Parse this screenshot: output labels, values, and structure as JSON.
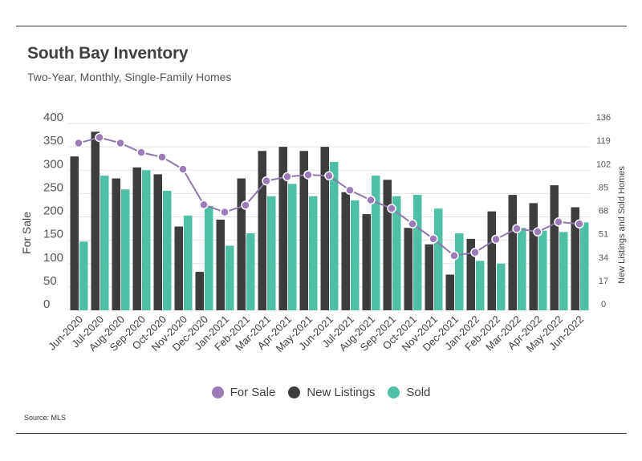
{
  "header": {
    "title": "South Bay Inventory",
    "subtitle": "Two-Year, Monthly, Single-Family Homes"
  },
  "footer": {
    "source": "Source:  MLS"
  },
  "colors": {
    "for_sale": "#9b7cb8",
    "new_listings": "#3d3d3d",
    "sold": "#4fbfa5",
    "line": "#8f78ac"
  },
  "chart_data": {
    "type": "bar",
    "categories": [
      "Jun-2020",
      "Jul-2020",
      "Aug-2020",
      "Sep-2020",
      "Oct-2020",
      "Nov-2020",
      "Dec-2020",
      "Jan-2021",
      "Feb-2021",
      "Mar-2021",
      "Apr-2021",
      "May-2021",
      "Jun-2021",
      "Jul-2021",
      "Aug-2021",
      "Sep-2021",
      "Oct-2021",
      "Nov-2021",
      "Dec-2021",
      "Jan-2022",
      "Feb-2022",
      "Mar-2022",
      "Apr-2022",
      "May-2022",
      "Jun-2022"
    ],
    "series": [
      {
        "name": "For Sale",
        "type": "line",
        "axis": "left",
        "values": [
          358,
          370,
          358,
          338,
          328,
          302,
          226,
          210,
          225,
          277,
          286,
          290,
          288,
          257,
          236,
          218,
          185,
          153,
          117,
          124,
          152,
          175,
          168,
          189,
          185
        ]
      },
      {
        "name": "New Listings",
        "type": "bar",
        "axis": "right",
        "values": [
          112,
          130,
          96,
          104,
          99,
          61,
          28,
          66,
          96,
          116,
          119,
          116,
          119,
          86,
          70,
          95,
          60,
          48,
          26,
          52,
          72,
          84,
          78,
          91,
          75
        ]
      },
      {
        "name": "Sold",
        "type": "bar",
        "axis": "right",
        "values": [
          50,
          98,
          88,
          102,
          87,
          69,
          76,
          47,
          56,
          83,
          92,
          83,
          108,
          80,
          98,
          83,
          84,
          74,
          56,
          36,
          34,
          60,
          58,
          57,
          64
        ]
      }
    ],
    "y_left": {
      "label": "For Sale",
      "ticks": [
        0,
        50,
        100,
        150,
        200,
        250,
        300,
        350,
        400
      ],
      "ylim": [
        0,
        400
      ]
    },
    "y_right": {
      "label": "New Listings and Sold Homes",
      "ticks": [
        0,
        17,
        34,
        51,
        68,
        85,
        102,
        119,
        136
      ],
      "ylim": [
        0,
        136
      ]
    },
    "grid": true,
    "legend": {
      "position": "bottom",
      "entries": [
        "For Sale",
        "New Listings",
        "Sold"
      ]
    }
  }
}
